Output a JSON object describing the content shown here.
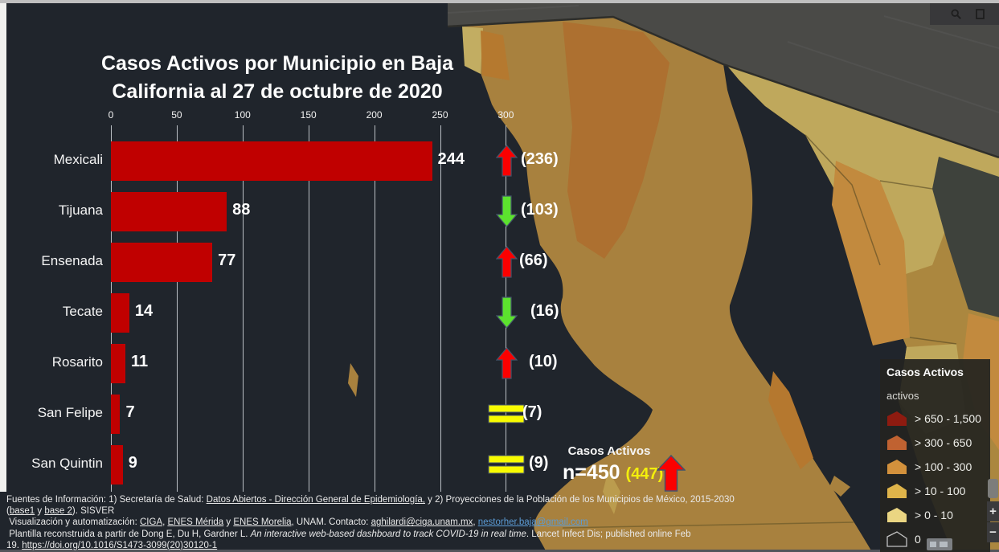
{
  "window": {
    "toolbar_icons": [
      "search",
      "bookmark",
      "legend-list"
    ]
  },
  "title": {
    "line1": "Casos Activos por Municipio en Baja",
    "line2": "California al 27 de octubre de 2020"
  },
  "chart_data": {
    "type": "bar",
    "orientation": "horizontal",
    "title": "Casos Activos por Municipio en Baja California al 27 de octubre de 2020",
    "date": "27 de octubre de 2020",
    "categories": [
      "Mexicali",
      "Tijuana",
      "Ensenada",
      "Tecate",
      "Rosarito",
      "San Felipe",
      "San Quintin"
    ],
    "values": [
      244,
      88,
      77,
      14,
      11,
      7,
      9
    ],
    "previous_values": [
      236,
      103,
      66,
      16,
      10,
      7,
      9
    ],
    "trends": [
      "up",
      "down",
      "up",
      "down",
      "up",
      "equal",
      "equal"
    ],
    "x_ticks": [
      "0",
      "50",
      "100",
      "150",
      "200",
      "250",
      "300"
    ],
    "xlim": [
      0,
      300
    ],
    "grid": true,
    "bar_color": "#c00000",
    "total": {
      "label": "Casos Activos",
      "value": "n=450",
      "previous": "(447)",
      "trend": "up"
    }
  },
  "legend": {
    "title": "Casos Activos",
    "subtitle": "activos",
    "items": [
      {
        "label": "> 650 - 1,500",
        "color": "#8e1b10"
      },
      {
        "label": "> 300 - 650",
        "color": "#c06231"
      },
      {
        "label": "> 100 - 300",
        "color": "#d3913c"
      },
      {
        "label": "> 10 - 100",
        "color": "#dfb44a"
      },
      {
        "label": "> 0 - 10",
        "color": "#ead582"
      },
      {
        "label": "0",
        "color": "none"
      }
    ]
  },
  "map_controls": {
    "zoom_in": "+",
    "zoom_out": "−"
  },
  "footer": {
    "lines": [
      {
        "segments": [
          {
            "t": "Fuentes de Información: 1) Secretaría de Salud: "
          },
          {
            "t": "Datos Abiertos - Dirección General de Epidemiología,",
            "u": true
          },
          {
            "t": " y 2) Proyecciones de la Población de los Municipios de México, 2015-2030"
          }
        ]
      },
      {
        "segments": [
          {
            "t": "("
          },
          {
            "t": "base1",
            "u": true
          },
          {
            "t": " y "
          },
          {
            "t": "base 2",
            "u": true
          },
          {
            "t": "). SISVER"
          }
        ]
      },
      {
        "segments": [
          {
            "t": " Visualización y automatización: "
          },
          {
            "t": "CIGA",
            "u": true
          },
          {
            "t": ", "
          },
          {
            "t": "ENES Mérida",
            "u": true
          },
          {
            "t": " y "
          },
          {
            "t": "ENES Morelia",
            "u": true
          },
          {
            "t": ", UNAM. Contacto: "
          },
          {
            "t": "aghilardi@ciga.unam.mx",
            "u": true
          },
          {
            "t": ", "
          },
          {
            "t": "nestorher.baja@gmail.com",
            "u": true,
            "b": true
          }
        ]
      },
      {
        "segments": [
          {
            "t": " Plantilla reconstruida a partir de Dong E, Du H, Gardner L. "
          },
          {
            "t": "An interactive web-based dashboard to track COVID-19 in real time",
            "i": true
          },
          {
            "t": ". Lancet Infect Dis; published online Feb"
          }
        ]
      },
      {
        "segments": [
          {
            "t": "19. "
          },
          {
            "t": "https://doi.org/10.1016/S1473-3099(20)30120-1",
            "u": true
          }
        ]
      }
    ]
  },
  "colors": {
    "background": "#20252c",
    "bar": "#c00000",
    "arrow_up": "#fb0000",
    "arrow_down": "#5ce22e",
    "arrow_equal": "#f8fb00",
    "total_highlight": "#f3ef0c",
    "usa_region": "#4a4a47",
    "peninsula": "#a8813e"
  }
}
